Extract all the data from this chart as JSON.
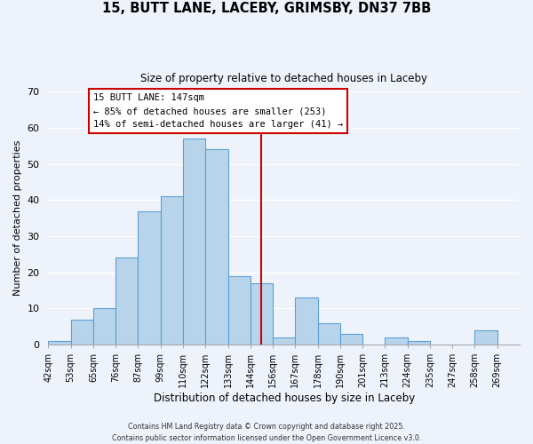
{
  "title": "15, BUTT LANE, LACEBY, GRIMSBY, DN37 7BB",
  "subtitle": "Size of property relative to detached houses in Laceby",
  "xlabel": "Distribution of detached houses by size in Laceby",
  "ylabel": "Number of detached properties",
  "bin_labels": [
    "42sqm",
    "53sqm",
    "65sqm",
    "76sqm",
    "87sqm",
    "99sqm",
    "110sqm",
    "122sqm",
    "133sqm",
    "144sqm",
    "156sqm",
    "167sqm",
    "178sqm",
    "190sqm",
    "201sqm",
    "213sqm",
    "224sqm",
    "235sqm",
    "247sqm",
    "258sqm",
    "269sqm"
  ],
  "bar_heights": [
    1,
    7,
    10,
    24,
    37,
    41,
    57,
    54,
    19,
    17,
    2,
    13,
    6,
    3,
    0,
    2,
    1,
    0,
    0,
    4,
    0
  ],
  "bar_color": "#b8d4ea",
  "bar_edge_color": "#5a9fd4",
  "vline_x": 9.5,
  "vline_color": "#cc0000",
  "annotation_title": "15 BUTT LANE: 147sqm",
  "annotation_line1": "← 85% of detached houses are smaller (253)",
  "annotation_line2": "14% of semi-detached houses are larger (41) →",
  "annotation_box_color": "#ffffff",
  "annotation_box_edge": "#cc0000",
  "footer1": "Contains HM Land Registry data © Crown copyright and database right 2025.",
  "footer2": "Contains public sector information licensed under the Open Government Licence v3.0.",
  "ylim": [
    0,
    70
  ],
  "bg_color": "#eef3fb",
  "grid_color": "#ffffff",
  "yticks": [
    0,
    10,
    20,
    30,
    40,
    50,
    60,
    70
  ]
}
